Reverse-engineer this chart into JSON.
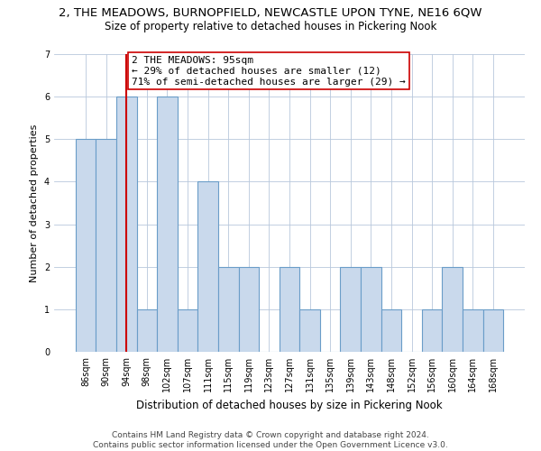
{
  "title": "2, THE MEADOWS, BURNOPFIELD, NEWCASTLE UPON TYNE, NE16 6QW",
  "subtitle": "Size of property relative to detached houses in Pickering Nook",
  "xlabel": "Distribution of detached houses by size in Pickering Nook",
  "ylabel": "Number of detached properties",
  "categories": [
    "86sqm",
    "90sqm",
    "94sqm",
    "98sqm",
    "102sqm",
    "107sqm",
    "111sqm",
    "115sqm",
    "119sqm",
    "123sqm",
    "127sqm",
    "131sqm",
    "135sqm",
    "139sqm",
    "143sqm",
    "148sqm",
    "152sqm",
    "156sqm",
    "160sqm",
    "164sqm",
    "168sqm"
  ],
  "values": [
    5,
    5,
    6,
    1,
    6,
    1,
    4,
    2,
    2,
    0,
    2,
    1,
    0,
    2,
    2,
    1,
    0,
    1,
    2,
    1,
    1
  ],
  "bar_color": "#c9d9ec",
  "bar_edge_color": "#6a9dc8",
  "highlight_line_index": 2,
  "highlight_line_color": "#cc0000",
  "annotation_box_text": "2 THE MEADOWS: 95sqm\n← 29% of detached houses are smaller (12)\n71% of semi-detached houses are larger (29) →",
  "annotation_box_color": "#cc0000",
  "ylim": [
    0,
    7
  ],
  "yticks": [
    0,
    1,
    2,
    3,
    4,
    5,
    6,
    7
  ],
  "background_color": "#ffffff",
  "footnote": "Contains HM Land Registry data © Crown copyright and database right 2024.\nContains public sector information licensed under the Open Government Licence v3.0.",
  "title_fontsize": 9.5,
  "subtitle_fontsize": 8.5,
  "xlabel_fontsize": 8.5,
  "ylabel_fontsize": 8,
  "tick_fontsize": 7,
  "annotation_fontsize": 8,
  "footnote_fontsize": 6.5
}
